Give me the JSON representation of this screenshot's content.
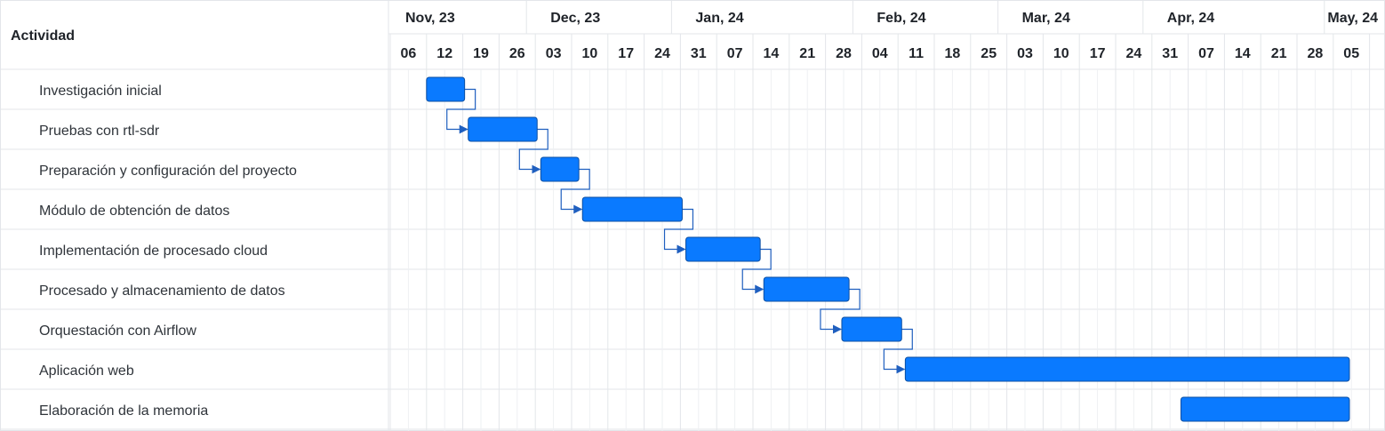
{
  "chart_data": {
    "type": "gantt",
    "column_header": "Actividad",
    "months": [
      "Nov, 23",
      "Dec, 23",
      "Jan, 24",
      "Feb, 24",
      "Mar, 24",
      "Apr, 24",
      "May, 24"
    ],
    "week_labels": [
      "06",
      "12",
      "19",
      "26",
      "03",
      "10",
      "17",
      "24",
      "31",
      "07",
      "14",
      "21",
      "28",
      "04",
      "11",
      "18",
      "25",
      "03",
      "10",
      "17",
      "24",
      "31",
      "07",
      "14",
      "21",
      "28",
      "05"
    ],
    "month_start_weeks": [
      0,
      4,
      8,
      13,
      17,
      21,
      26
    ],
    "tasks": [
      {
        "name": "Investigación inicial",
        "start_week": 1.0,
        "end_week": 2.05
      },
      {
        "name": "Pruebas con rtl-sdr",
        "start_week": 2.15,
        "end_week": 4.05
      },
      {
        "name": "Preparación y configuración del proyecto",
        "start_week": 4.15,
        "end_week": 5.2
      },
      {
        "name": "Módulo de obtención de datos",
        "start_week": 5.3,
        "end_week": 8.05
      },
      {
        "name": "Implementación de procesado cloud",
        "start_week": 8.15,
        "end_week": 10.2
      },
      {
        "name": "Procesado y almacenamiento de datos",
        "start_week": 10.3,
        "end_week": 12.65
      },
      {
        "name": "Orquestación con Airflow",
        "start_week": 12.45,
        "end_week": 14.1
      },
      {
        "name": "Aplicación web",
        "start_week": 14.2,
        "end_week": 26.5
      },
      {
        "name": "Elaboración de la memoria",
        "start_week": 21.8,
        "end_week": 26.5
      }
    ],
    "dependencies": [
      [
        0,
        1
      ],
      [
        1,
        2
      ],
      [
        2,
        3
      ],
      [
        3,
        4
      ],
      [
        4,
        5
      ],
      [
        5,
        6
      ],
      [
        6,
        7
      ]
    ],
    "colors": {
      "bar": "#0a7aff",
      "bar_stroke": "#0b4ea2",
      "connector": "#1f5fbf",
      "grid": "#e3e6ea",
      "grid_light": "#eef0f3"
    }
  }
}
